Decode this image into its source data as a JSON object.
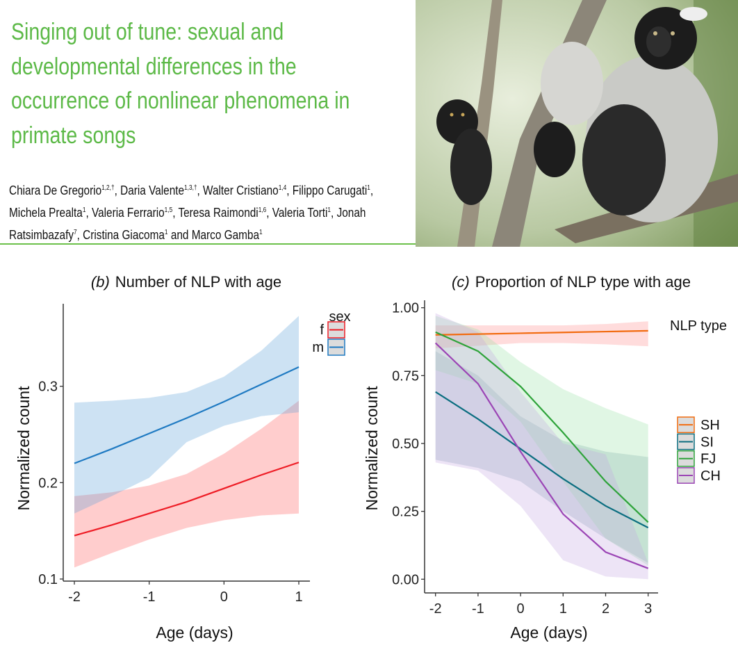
{
  "paper": {
    "title_lines": [
      "Singing out of tune: sexual and",
      "developmental differences in the",
      "occurrence of nonlinear phenomena in",
      "primate songs"
    ],
    "author_lines": [
      [
        {
          "text": "Chiara De Gregorio",
          "sup": "1,2,†"
        },
        {
          "text": ", Daria Valente",
          "sup": "1,3,†"
        },
        {
          "text": ", Walter Cristiano",
          "sup": "1,4"
        },
        {
          "text": ", Filippo Carugati",
          "sup": "1"
        },
        {
          "text": ",",
          "sup": ""
        }
      ],
      [
        {
          "text": "Michela Prealta",
          "sup": "1"
        },
        {
          "text": ", Valeria Ferrario",
          "sup": "1,5"
        },
        {
          "text": ", Teresa Raimondi",
          "sup": "1,6"
        },
        {
          "text": ", Valeria Torti",
          "sup": "1"
        },
        {
          "text": ", Jonah",
          "sup": ""
        }
      ],
      [
        {
          "text": "Ratsimbazafy",
          "sup": "7"
        },
        {
          "text": ", Cristina Giacoma",
          "sup": "1"
        },
        {
          "text": " and Marco Gamba",
          "sup": "1"
        }
      ]
    ],
    "accent_color": "#5cb947"
  },
  "chart_data": [
    {
      "type": "line",
      "panel": "(b)",
      "title": "Number of NLP with age",
      "xlabel": "Age (days)",
      "ylabel": "Normalized count",
      "xlim": [
        -2,
        1
      ],
      "ylim": [
        0.1,
        0.37
      ],
      "xticks": [
        "-2",
        "-1",
        "0",
        "1"
      ],
      "yticks": [
        "0.1",
        "0.2",
        "0.3"
      ],
      "legend": {
        "title": "sex",
        "position": "right"
      },
      "x": [
        -2,
        -1.5,
        -1,
        -0.5,
        0,
        0.5,
        1
      ],
      "series": [
        {
          "name": "f",
          "color": "#ee1c25",
          "band_color": "#ff5a5a",
          "values": [
            0.145,
            0.156,
            0.168,
            0.18,
            0.194,
            0.208,
            0.221
          ],
          "lower": [
            0.112,
            0.127,
            0.141,
            0.153,
            0.161,
            0.166,
            0.168
          ],
          "upper": [
            0.186,
            0.19,
            0.197,
            0.209,
            0.23,
            0.256,
            0.285
          ]
        },
        {
          "name": "m",
          "color": "#1f7ac2",
          "band_color": "#5b9fd6",
          "values": [
            0.22,
            0.235,
            0.251,
            0.267,
            0.284,
            0.302,
            0.32
          ],
          "lower": [
            0.168,
            0.186,
            0.205,
            0.242,
            0.259,
            0.269,
            0.273
          ],
          "upper": [
            0.283,
            0.285,
            0.288,
            0.294,
            0.31,
            0.337,
            0.373
          ]
        }
      ]
    },
    {
      "type": "line",
      "panel": "(c)",
      "title": "Proportion of NLP type with age",
      "xlabel": "Age (days)",
      "ylabel": "Normalized count",
      "xlim": [
        -2,
        3
      ],
      "ylim": [
        0,
        1
      ],
      "xticks": [
        "-2",
        "-1",
        "0",
        "1",
        "2",
        "3"
      ],
      "yticks": [
        "0.00",
        "0.25",
        "0.50",
        "0.75",
        "1.00"
      ],
      "legend": {
        "title": "NLP type",
        "position": "right"
      },
      "x": [
        -2,
        -1,
        0,
        1,
        2,
        3
      ],
      "series": [
        {
          "name": "SH",
          "color": "#f26b0f",
          "band_color": "#ff8a8a",
          "values": [
            0.9,
            0.903,
            0.906,
            0.909,
            0.912,
            0.915
          ],
          "lower": [
            0.85,
            0.86,
            0.87,
            0.87,
            0.865,
            0.858
          ],
          "upper": [
            0.935,
            0.935,
            0.935,
            0.935,
            0.94,
            0.95
          ]
        },
        {
          "name": "SI",
          "color": "#0b6e80",
          "band_color": "#7f9fb0",
          "values": [
            0.69,
            0.59,
            0.48,
            0.37,
            0.27,
            0.19
          ],
          "lower": [
            0.44,
            0.41,
            0.36,
            0.25,
            0.15,
            0.06
          ],
          "upper": [
            0.84,
            0.75,
            0.6,
            0.51,
            0.47,
            0.45
          ]
        },
        {
          "name": "FJ",
          "color": "#2ea33a",
          "band_color": "#98e0a4",
          "values": [
            0.91,
            0.84,
            0.71,
            0.54,
            0.36,
            0.21
          ],
          "lower": [
            0.77,
            0.72,
            0.58,
            0.36,
            0.15,
            0.05
          ],
          "upper": [
            0.97,
            0.92,
            0.8,
            0.7,
            0.63,
            0.57
          ]
        },
        {
          "name": "CH",
          "color": "#9b45b5",
          "band_color": "#c3a6e2",
          "values": [
            0.87,
            0.72,
            0.47,
            0.24,
            0.1,
            0.04
          ],
          "lower": [
            0.43,
            0.4,
            0.27,
            0.07,
            0.01,
            0.0
          ],
          "upper": [
            0.98,
            0.91,
            0.69,
            0.5,
            0.46,
            0.06
          ]
        }
      ]
    }
  ]
}
